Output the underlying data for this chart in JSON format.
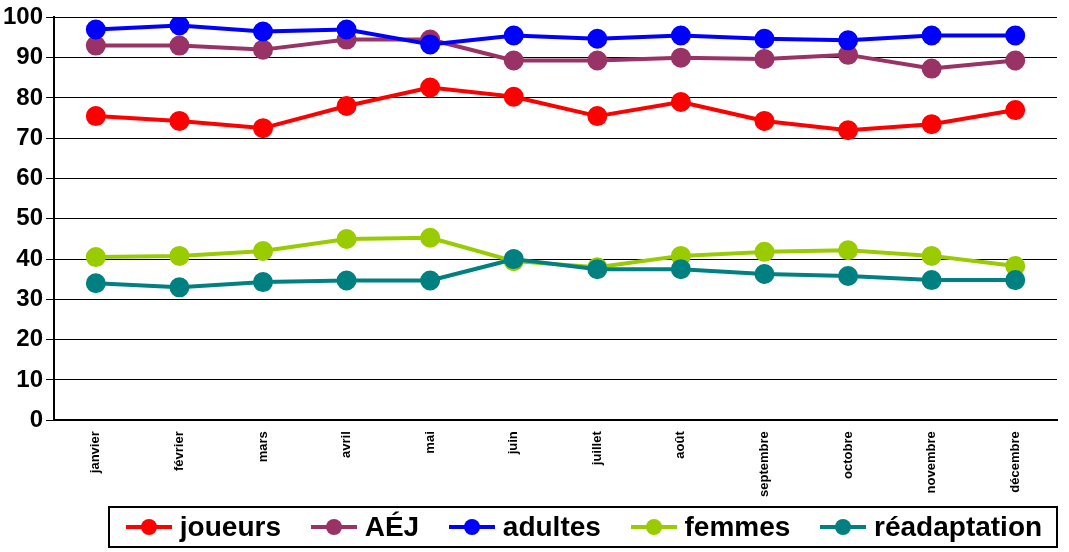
{
  "chart_data": {
    "type": "line",
    "categories": [
      "janvier",
      "février",
      "mars",
      "avril",
      "mai",
      "juin",
      "juillet",
      "août",
      "septembre",
      "octobre",
      "novembre",
      "décembre"
    ],
    "series": [
      {
        "name": "joueurs",
        "color": "#ff0000",
        "values": [
          75.5,
          74.3,
          72.5,
          78,
          82.6,
          80.3,
          75.5,
          79,
          74.3,
          72,
          73.5,
          77
        ]
      },
      {
        "name": "AÉJ",
        "color": "#993366",
        "values": [
          93,
          93,
          92,
          94.5,
          94.5,
          89.3,
          89.3,
          90,
          89.7,
          90.7,
          87.3,
          89.3
        ]
      },
      {
        "name": "adultes",
        "color": "#0000ff",
        "values": [
          97,
          98,
          96.5,
          97,
          93.3,
          95.5,
          94.7,
          95.5,
          94.7,
          94.3,
          95.5,
          95.5
        ]
      },
      {
        "name": "femmes",
        "color": "#99cc00",
        "values": [
          40.5,
          40.8,
          42,
          45,
          45.3,
          39.5,
          38,
          40.8,
          41.8,
          42.2,
          40.8,
          38.3
        ]
      },
      {
        "name": "réadaptation",
        "color": "#008080",
        "values": [
          34,
          33,
          34.3,
          34.7,
          34.7,
          40,
          37.5,
          37.5,
          36.3,
          35.8,
          34.8,
          34.8
        ]
      }
    ],
    "ylim": [
      0,
      100
    ],
    "yticks": [
      0,
      10,
      20,
      30,
      40,
      50,
      60,
      70,
      80,
      90,
      100
    ],
    "grid": "y",
    "legend": "bottom",
    "marker": "circle",
    "line_style": "solid"
  }
}
